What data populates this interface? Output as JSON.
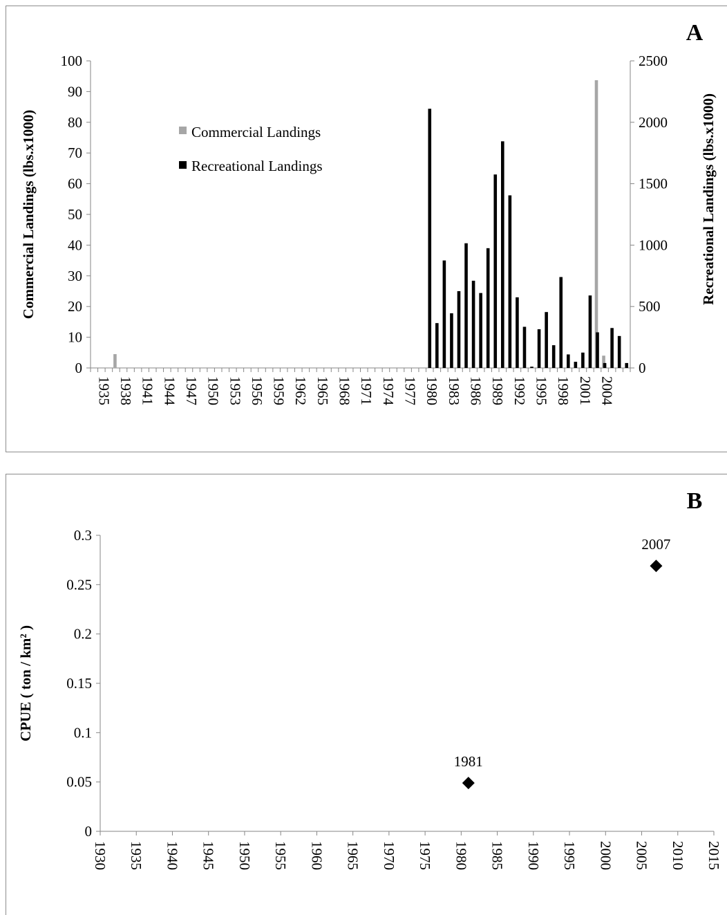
{
  "chart_data": [
    {
      "type": "bar",
      "panel_label": "A",
      "ylabel": "Commercial Landings (lbs.x1000)",
      "ylabel_right": "Recreational Landings (lbs.x1000)",
      "ylim": [
        0,
        100
      ],
      "ylim_right": [
        0,
        2500
      ],
      "yticks": [
        0,
        10,
        20,
        30,
        40,
        50,
        60,
        70,
        80,
        90,
        100
      ],
      "yticks_right": [
        0,
        500,
        1000,
        1500,
        2000,
        2500
      ],
      "xlim": [
        1935,
        2008
      ],
      "xtick_labels": [
        "1935",
        "1938",
        "1941",
        "1944",
        "1947",
        "1950",
        "1953",
        "1956",
        "1959",
        "1962",
        "1965",
        "1968",
        "1971",
        "1974",
        "1977",
        "1980",
        "1983",
        "1986",
        "1989",
        "1992",
        "1995",
        "1998",
        "2001",
        "2004"
      ],
      "legend_position": "upper-left",
      "colors": {
        "commercial": "#a6a6a6",
        "recreational": "#000000"
      },
      "series": [
        {
          "name": "Commercial Landings",
          "axis": "left",
          "x": [
            1938,
            2004,
            2005
          ],
          "values": [
            4.5,
            93.7,
            4.0
          ]
        },
        {
          "name": "Recreational Landings",
          "axis": "right",
          "x": [
            1981,
            1982,
            1983,
            1984,
            1985,
            1986,
            1987,
            1988,
            1989,
            1990,
            1991,
            1992,
            1993,
            1994,
            1995,
            1996,
            1997,
            1998,
            1999,
            2000,
            2001,
            2002,
            2003,
            2004,
            2005,
            2006,
            2007,
            2008
          ],
          "values": [
            2110,
            365,
            875,
            445,
            625,
            1015,
            710,
            610,
            975,
            1575,
            1845,
            1405,
            575,
            335,
            10,
            315,
            455,
            185,
            740,
            110,
            50,
            125,
            590,
            290,
            40,
            325,
            260,
            40
          ]
        }
      ]
    },
    {
      "type": "scatter",
      "panel_label": "B",
      "ylabel": "CPUE ( ton / km² )",
      "xlim": [
        1930,
        2015
      ],
      "ylim": [
        0,
        0.3
      ],
      "xticks": [
        1930,
        1935,
        1940,
        1945,
        1950,
        1955,
        1960,
        1965,
        1970,
        1975,
        1980,
        1985,
        1990,
        1995,
        2000,
        2005,
        2010,
        2015
      ],
      "yticks": [
        "0",
        "0.05",
        "0.1",
        "0.15",
        "0.2",
        "0.25",
        "0.3"
      ],
      "marker": "diamond",
      "color": "#000000",
      "points": [
        {
          "x": 1981,
          "y": 0.049,
          "label": "1981"
        },
        {
          "x": 2007,
          "y": 0.269,
          "label": "2007"
        }
      ]
    }
  ]
}
